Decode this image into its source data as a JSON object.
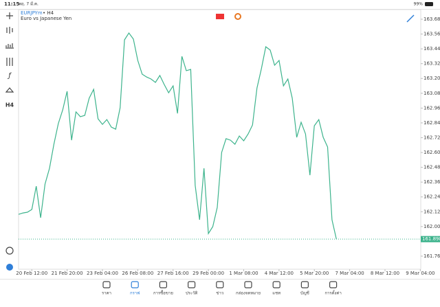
{
  "status_bar": {
    "time": "11:15",
    "date": "พฤ. 7 มี.ค.",
    "battery": "99%"
  },
  "side_toolbar": {
    "timeframe": "H4"
  },
  "chart_data": {
    "type": "line",
    "symbol": "EURJPYm",
    "timeframe": "• H4",
    "description": "Euro vs Japanese Yen",
    "color": "#3cb38c",
    "current_price": 161.898,
    "values": [
      162.099,
      162.11,
      162.116,
      162.138,
      162.327,
      162.071,
      162.344,
      162.472,
      162.667,
      162.834,
      162.945,
      163.096,
      162.7,
      162.929,
      162.89,
      162.901,
      163.04,
      163.112,
      162.873,
      162.828,
      162.867,
      162.806,
      162.789,
      162.962,
      163.513,
      163.569,
      163.519,
      163.346,
      163.235,
      163.212,
      163.196,
      163.168,
      163.224,
      163.151,
      163.084,
      163.14,
      162.917,
      163.379,
      163.263,
      163.274,
      162.333,
      162.055,
      162.472,
      161.943,
      161.999,
      162.155,
      162.6,
      162.712,
      162.7,
      162.667,
      162.734,
      162.695,
      162.75,
      162.823,
      163.123,
      163.279,
      163.457,
      163.43,
      163.307,
      163.346,
      163.14,
      163.196,
      163.04,
      162.723,
      162.845,
      162.75,
      162.416,
      162.817,
      162.867,
      162.723,
      162.645,
      162.055,
      161.898
    ],
    "xlim": [
      0,
      91.1
    ],
    "xticks": [
      {
        "value": 3,
        "label": "20 Feb 12:00"
      },
      {
        "value": 11,
        "label": "21 Feb 20:00"
      },
      {
        "value": 19,
        "label": "23 Feb 04:00"
      },
      {
        "value": 27,
        "label": "26 Feb 08:00"
      },
      {
        "value": 35,
        "label": "27 Feb 16:00"
      },
      {
        "value": 43,
        "label": "29 Feb 00:00"
      },
      {
        "value": 51,
        "label": "1 Mar 08:00"
      },
      {
        "value": 59,
        "label": "4 Mar 12:00"
      },
      {
        "value": 67,
        "label": "5 Mar 20:00"
      },
      {
        "value": 75,
        "label": "7 Mar 04:00"
      },
      {
        "value": 83,
        "label": "8 Mar 12:00"
      },
      {
        "value": 91,
        "label": "9 Mar 04:00"
      }
    ],
    "ylim": [
      161.654,
      163.758
    ],
    "yticks": [
      {
        "value": 163.68,
        "label": "163.680"
      },
      {
        "value": 163.56,
        "label": "163.560"
      },
      {
        "value": 163.44,
        "label": "163.440"
      },
      {
        "value": 163.32,
        "label": "163.320"
      },
      {
        "value": 163.2,
        "label": "163.200"
      },
      {
        "value": 163.08,
        "label": "163.080"
      },
      {
        "value": 162.96,
        "label": "162.960"
      },
      {
        "value": 162.84,
        "label": "162.840"
      },
      {
        "value": 162.72,
        "label": "162.720"
      },
      {
        "value": 162.6,
        "label": "162.600"
      },
      {
        "value": 162.48,
        "label": "162.480"
      },
      {
        "value": 162.36,
        "label": "162.360"
      },
      {
        "value": 162.24,
        "label": "162.240"
      },
      {
        "value": 162.12,
        "label": "162.120"
      },
      {
        "value": 162,
        "label": "162.000"
      },
      {
        "value": 161.76,
        "label": "161.760"
      }
    ]
  },
  "nav": [
    {
      "label": "ราคา"
    },
    {
      "label": "กราฟ"
    },
    {
      "label": "การซื้อขาย"
    },
    {
      "label": "ประวัติ"
    },
    {
      "label": "ข่าว"
    },
    {
      "label": "กล่องจดหมาย"
    },
    {
      "label": "แชท"
    },
    {
      "label": "บัญชี"
    },
    {
      "label": "การตั้งค่า"
    }
  ]
}
